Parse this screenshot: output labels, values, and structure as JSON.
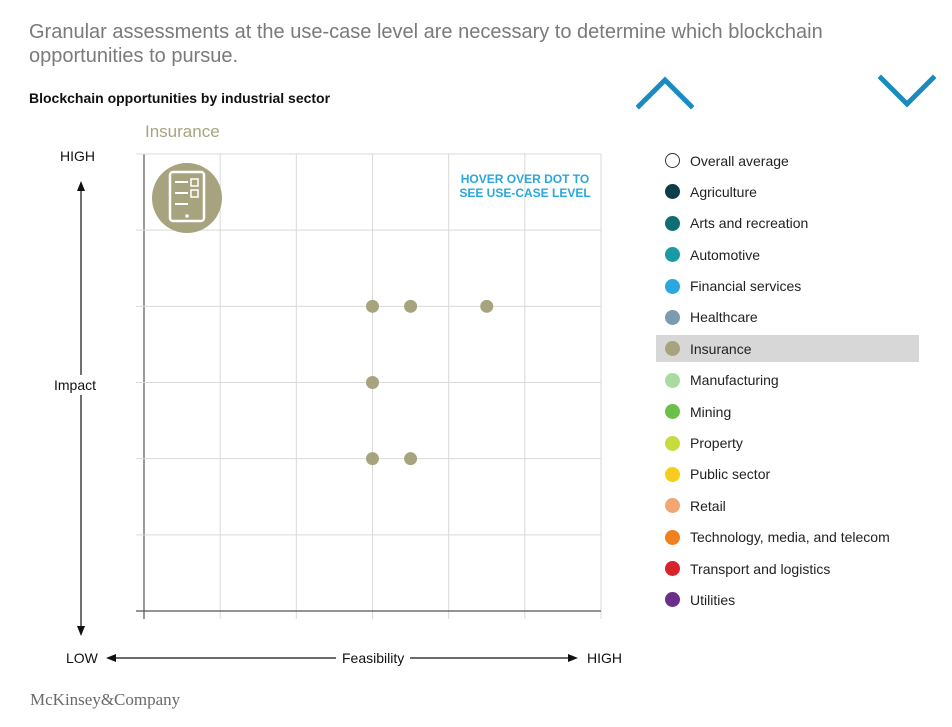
{
  "headline": "Granular assessments at the use-case level are necessary to determine which blockchain opportunities to pursue.",
  "subtitle": "Blockchain opportunities by industrial sector",
  "nav": {
    "up_icon": "chevron-up-icon",
    "down_icon": "chevron-down-icon",
    "color": "#1a8bc0"
  },
  "hover_hint": "HOVER OVER DOT TO SEE USE-CASE LEVEL",
  "legend": [
    {
      "label": "Overall average",
      "color": "#ffffff",
      "outline": true
    },
    {
      "label": "Agriculture",
      "color": "#0b3d4a"
    },
    {
      "label": "Arts and recreation",
      "color": "#0f6e73"
    },
    {
      "label": "Automotive",
      "color": "#1a9aa5"
    },
    {
      "label": "Financial services",
      "color": "#2aa7de"
    },
    {
      "label": "Healthcare",
      "color": "#7d9bb0"
    },
    {
      "label": "Insurance",
      "color": "#a8a37f",
      "selected": true
    },
    {
      "label": "Manufacturing",
      "color": "#a9dba0"
    },
    {
      "label": "Mining",
      "color": "#6cc04a"
    },
    {
      "label": "Property",
      "color": "#c7dc3c"
    },
    {
      "label": "Public sector",
      "color": "#f6cc1f"
    },
    {
      "label": "Retail",
      "color": "#f4a672"
    },
    {
      "label": "Technology, media, and telecom",
      "color": "#f1801f"
    },
    {
      "label": "Transport and logistics",
      "color": "#d8232a"
    },
    {
      "label": "Utilities",
      "color": "#6c2f87"
    }
  ],
  "brand": "McKinsey&Company",
  "chart_data": {
    "type": "scatter",
    "title": "Insurance",
    "xlabel": "Feasibility",
    "ylabel": "Impact",
    "x_low_label": "LOW",
    "x_high_label": "HIGH",
    "y_high_label": "HIGH",
    "xlim": [
      0,
      6
    ],
    "ylim": [
      0,
      6
    ],
    "grid": true,
    "icon": "tablet-checklist-icon",
    "series": [
      {
        "color": "#a8a37f",
        "points": [
          {
            "x": 3.0,
            "y": 4.0
          },
          {
            "x": 3.5,
            "y": 4.0
          },
          {
            "x": 4.5,
            "y": 4.0
          },
          {
            "x": 3.0,
            "y": 3.0
          },
          {
            "x": 3.0,
            "y": 2.0
          },
          {
            "x": 3.5,
            "y": 2.0
          }
        ]
      }
    ]
  }
}
